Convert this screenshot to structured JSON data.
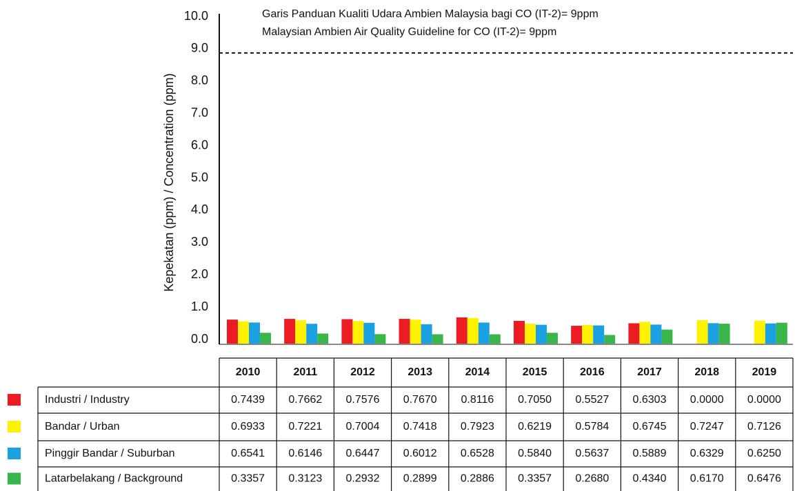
{
  "chart_data": {
    "type": "bar",
    "y_label": "Kepekatan (ppm) / Concentration (ppm)",
    "annotations": [
      "Garis Panduan Kualiti Udara Ambien Malaysia bagi CO (IT-2)= 9ppm",
      "Malaysian Ambien Air Quality Guideline for CO (IT-2)= 9ppm"
    ],
    "threshold": 9,
    "categories": [
      "2010",
      "2011",
      "2012",
      "2013",
      "2014",
      "2015",
      "2016",
      "2017",
      "2018",
      "2019"
    ],
    "series": [
      {
        "name": "Industri / Industry",
        "color": "#ed1c24",
        "values": [
          0.7439,
          0.7662,
          0.7576,
          0.767,
          0.8116,
          0.705,
          0.5527,
          0.6303,
          0,
          0
        ],
        "value_labels": [
          "0.7439",
          "0.7662",
          "0.7576",
          "0.7670",
          "0.8116",
          "0.7050",
          "0.5527",
          "0.6303",
          "0.0000",
          "0.0000"
        ]
      },
      {
        "name": "Bandar / Urban",
        "color": "#fff200",
        "values": [
          0.6933,
          0.7221,
          0.7004,
          0.7418,
          0.7923,
          0.6219,
          0.5784,
          0.6745,
          0.7247,
          0.7126
        ],
        "value_labels": [
          "0.6933",
          "0.7221",
          "0.7004",
          "0.7418",
          "0.7923",
          "0.6219",
          "0.5784",
          "0.6745",
          "0.7247",
          "0.7126"
        ]
      },
      {
        "name": "Pinggir Bandar / Suburban",
        "color": "#1ba1e2",
        "values": [
          0.6541,
          0.6146,
          0.6447,
          0.6012,
          0.6528,
          0.584,
          0.5637,
          0.5889,
          0.6329,
          0.625
        ],
        "value_labels": [
          "0.6541",
          "0.6146",
          "0.6447",
          "0.6012",
          "0.6528",
          "0.5840",
          "0.5637",
          "0.5889",
          "0.6329",
          "0.6250"
        ]
      },
      {
        "name": "Latarbelakang / Background",
        "color": "#3ab54a",
        "values": [
          0.3357,
          0.3123,
          0.2932,
          0.2899,
          0.2886,
          0.3357,
          0.268,
          0.434,
          0.617,
          0.6476
        ],
        "value_labels": [
          "0.3357",
          "0.3123",
          "0.2932",
          "0.2899",
          "0.2886",
          "0.3357",
          "0.2680",
          "0.4340",
          "0.6170",
          "0.6476"
        ]
      }
    ],
    "ylim": [
      0,
      10
    ],
    "yticks": [
      {
        "value": 0,
        "label": "0.0"
      },
      {
        "value": 1,
        "label": "1.0"
      },
      {
        "value": 2,
        "label": "2.0"
      },
      {
        "value": 3,
        "label": "3.0"
      },
      {
        "value": 4,
        "label": "4.0"
      },
      {
        "value": 5,
        "label": "5.0"
      },
      {
        "value": 6,
        "label": "6.0"
      },
      {
        "value": 7,
        "label": "7.0"
      },
      {
        "value": 8,
        "label": "8.0"
      },
      {
        "value": 9,
        "label": "9.0"
      },
      {
        "value": 10,
        "label": "10.0"
      }
    ]
  }
}
